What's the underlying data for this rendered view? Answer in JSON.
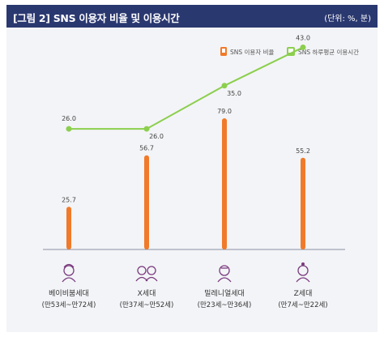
{
  "header": {
    "title": "[그림 2]  SNS 이용자 비율 및 이용시간",
    "unit": "(단위: %, 분)"
  },
  "legend": {
    "items": [
      {
        "label": "SNS 이용자 비율",
        "icon": "phone-icon",
        "color": "#f07a2a"
      },
      {
        "label": "SNS 하루평균 이용시간",
        "icon": "message-icon",
        "color": "#8ccf4e"
      }
    ]
  },
  "chart_data": {
    "type": "bar",
    "categories": [
      {
        "name": "베이비붐세대",
        "sub": "(만53세~만72세)",
        "icon": "elder-person-icon"
      },
      {
        "name": "X세대",
        "sub": "(만37세~만52세)",
        "icon": "couple-icon"
      },
      {
        "name": "밀레니얼세대",
        "sub": "(만23세~만36세)",
        "icon": "young-person-icon"
      },
      {
        "name": "Z세대",
        "sub": "(만7세~만22세)",
        "icon": "child-icon"
      }
    ],
    "series": [
      {
        "name": "SNS 이용자 비율",
        "type": "bar",
        "color": "#f07a2a",
        "values": [
          25.7,
          56.7,
          79.0,
          55.2
        ]
      },
      {
        "name": "SNS 하루평균 이용시간",
        "type": "line",
        "color": "#8ccf4e",
        "values": [
          26.0,
          26.0,
          35.0,
          43.0
        ]
      }
    ],
    "value_labels": {
      "bar": [
        "25.7",
        "56.7",
        "79.0",
        "55.2"
      ],
      "line": [
        "26.0",
        "26.0",
        "35.0",
        "43.0"
      ]
    },
    "bar_ylim": [
      0,
      100
    ],
    "line_ylim": [
      0,
      50
    ],
    "grid": false
  }
}
